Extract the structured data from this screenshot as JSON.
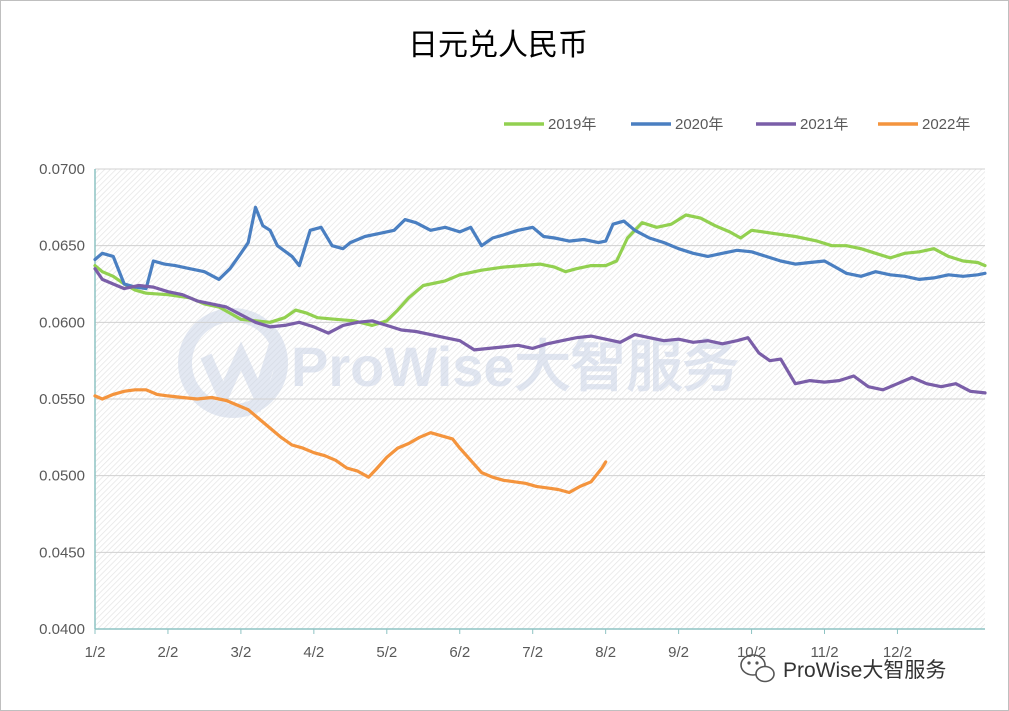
{
  "chart_data": {
    "type": "line",
    "title": "日元兑人民币",
    "xlabel": "",
    "ylabel": "",
    "ylim": [
      0.04,
      0.07
    ],
    "yticks": [
      "0.0700",
      "0.0650",
      "0.0600",
      "0.0550",
      "0.0500",
      "0.0450",
      "0.0400"
    ],
    "ytick_values": [
      0.07,
      0.065,
      0.06,
      0.055,
      0.05,
      0.045,
      0.04
    ],
    "xlim": [
      1,
      13.2
    ],
    "xticks": [
      "1/2",
      "2/2",
      "3/2",
      "4/2",
      "5/2",
      "6/2",
      "7/2",
      "8/2",
      "9/2",
      "10/2",
      "11/2",
      "12/2"
    ],
    "xtick_values": [
      1,
      2,
      3,
      4,
      5,
      6,
      7,
      8,
      9,
      10,
      11,
      12
    ],
    "x_unit": "month (1 = 1/2)",
    "legend_position": "top-right",
    "grid": true,
    "series": [
      {
        "name": "2019年",
        "color": "#92d050",
        "x": [
          1.0,
          1.1,
          1.25,
          1.4,
          1.55,
          1.7,
          2.0,
          2.3,
          2.5,
          2.7,
          2.85,
          3.0,
          3.2,
          3.4,
          3.6,
          3.75,
          3.9,
          4.05,
          4.3,
          4.55,
          4.8,
          5.0,
          5.15,
          5.3,
          5.5,
          5.8,
          6.0,
          6.3,
          6.6,
          6.85,
          7.1,
          7.3,
          7.45,
          7.6,
          7.8,
          8.0,
          8.15,
          8.3,
          8.5,
          8.7,
          8.9,
          9.1,
          9.3,
          9.5,
          9.7,
          9.85,
          10.0,
          10.3,
          10.6,
          10.9,
          11.1,
          11.3,
          11.5,
          11.7,
          11.9,
          12.1,
          12.3,
          12.5,
          12.7,
          12.9,
          13.1,
          13.2
        ],
        "values": [
          0.0637,
          0.0633,
          0.063,
          0.0625,
          0.0621,
          0.0619,
          0.0618,
          0.0616,
          0.0612,
          0.061,
          0.0606,
          0.0602,
          0.0601,
          0.06,
          0.0603,
          0.0608,
          0.0606,
          0.0603,
          0.0602,
          0.0601,
          0.0598,
          0.0601,
          0.0608,
          0.0616,
          0.0624,
          0.0627,
          0.0631,
          0.0634,
          0.0636,
          0.0637,
          0.0638,
          0.0636,
          0.0633,
          0.0635,
          0.0637,
          0.0637,
          0.064,
          0.0655,
          0.0665,
          0.0662,
          0.0664,
          0.067,
          0.0668,
          0.0663,
          0.0659,
          0.0655,
          0.066,
          0.0658,
          0.0656,
          0.0653,
          0.065,
          0.065,
          0.0648,
          0.0645,
          0.0642,
          0.0645,
          0.0646,
          0.0648,
          0.0643,
          0.064,
          0.0639,
          0.0637
        ]
      },
      {
        "name": "2020年",
        "color": "#4a7fc1",
        "x": [
          1.0,
          1.1,
          1.25,
          1.4,
          1.55,
          1.7,
          1.8,
          1.95,
          2.1,
          2.3,
          2.5,
          2.7,
          2.85,
          3.0,
          3.1,
          3.2,
          3.3,
          3.4,
          3.5,
          3.7,
          3.8,
          3.95,
          4.1,
          4.25,
          4.4,
          4.5,
          4.7,
          4.9,
          5.1,
          5.25,
          5.4,
          5.6,
          5.8,
          6.0,
          6.15,
          6.3,
          6.45,
          6.6,
          6.8,
          7.0,
          7.15,
          7.3,
          7.5,
          7.7,
          7.9,
          8.0,
          8.1,
          8.25,
          8.4,
          8.6,
          8.8,
          9.0,
          9.2,
          9.4,
          9.6,
          9.8,
          10.0,
          10.2,
          10.4,
          10.6,
          10.8,
          11.0,
          11.15,
          11.3,
          11.5,
          11.7,
          11.9,
          12.1,
          12.3,
          12.5,
          12.7,
          12.9,
          13.1,
          13.2
        ],
        "values": [
          0.0641,
          0.0645,
          0.0643,
          0.0625,
          0.0623,
          0.0622,
          0.064,
          0.0638,
          0.0637,
          0.0635,
          0.0633,
          0.0628,
          0.0635,
          0.0645,
          0.0652,
          0.0675,
          0.0663,
          0.066,
          0.065,
          0.0643,
          0.0637,
          0.066,
          0.0662,
          0.065,
          0.0648,
          0.0652,
          0.0656,
          0.0658,
          0.066,
          0.0667,
          0.0665,
          0.066,
          0.0662,
          0.0659,
          0.0662,
          0.065,
          0.0655,
          0.0657,
          0.066,
          0.0662,
          0.0656,
          0.0655,
          0.0653,
          0.0654,
          0.0652,
          0.0653,
          0.0664,
          0.0666,
          0.066,
          0.0655,
          0.0652,
          0.0648,
          0.0645,
          0.0643,
          0.0645,
          0.0647,
          0.0646,
          0.0643,
          0.064,
          0.0638,
          0.0639,
          0.064,
          0.0636,
          0.0632,
          0.063,
          0.0633,
          0.0631,
          0.063,
          0.0628,
          0.0629,
          0.0631,
          0.063,
          0.0631,
          0.0632
        ]
      },
      {
        "name": "2021年",
        "color": "#7a5ea8",
        "x": [
          1.0,
          1.1,
          1.25,
          1.4,
          1.6,
          1.8,
          2.0,
          2.2,
          2.4,
          2.6,
          2.8,
          3.0,
          3.2,
          3.4,
          3.6,
          3.8,
          4.0,
          4.2,
          4.4,
          4.6,
          4.8,
          5.0,
          5.2,
          5.4,
          5.6,
          5.8,
          6.0,
          6.2,
          6.4,
          6.6,
          6.8,
          7.0,
          7.2,
          7.4,
          7.6,
          7.8,
          8.0,
          8.2,
          8.4,
          8.6,
          8.8,
          9.0,
          9.2,
          9.4,
          9.6,
          9.8,
          9.95,
          10.1,
          10.25,
          10.4,
          10.6,
          10.8,
          11.0,
          11.2,
          11.4,
          11.6,
          11.8,
          12.0,
          12.2,
          12.4,
          12.6,
          12.8,
          13.0,
          13.2
        ],
        "values": [
          0.0635,
          0.0628,
          0.0625,
          0.0622,
          0.0624,
          0.0623,
          0.062,
          0.0618,
          0.0614,
          0.0612,
          0.061,
          0.0605,
          0.06,
          0.0597,
          0.0598,
          0.06,
          0.0597,
          0.0593,
          0.0598,
          0.06,
          0.0601,
          0.0598,
          0.0595,
          0.0594,
          0.0592,
          0.059,
          0.0588,
          0.0582,
          0.0583,
          0.0584,
          0.0585,
          0.0583,
          0.0586,
          0.0588,
          0.059,
          0.0591,
          0.0589,
          0.0587,
          0.0592,
          0.059,
          0.0588,
          0.0589,
          0.0587,
          0.0588,
          0.0586,
          0.0588,
          0.059,
          0.058,
          0.0575,
          0.0576,
          0.056,
          0.0562,
          0.0561,
          0.0562,
          0.0565,
          0.0558,
          0.0556,
          0.056,
          0.0564,
          0.056,
          0.0558,
          0.056,
          0.0555,
          0.0554
        ]
      },
      {
        "name": "2022年",
        "color": "#f4943d",
        "x": [
          1.0,
          1.1,
          1.25,
          1.4,
          1.55,
          1.7,
          1.85,
          2.0,
          2.2,
          2.4,
          2.6,
          2.8,
          2.95,
          3.1,
          3.25,
          3.4,
          3.55,
          3.7,
          3.85,
          4.0,
          4.15,
          4.3,
          4.45,
          4.6,
          4.75,
          4.85,
          5.0,
          5.15,
          5.3,
          5.45,
          5.6,
          5.75,
          5.9,
          6.0,
          6.15,
          6.3,
          6.45,
          6.6,
          6.75,
          6.9,
          7.05,
          7.2,
          7.35,
          7.5,
          7.65,
          7.8,
          7.95,
          8.0
        ],
        "values": [
          0.0552,
          0.055,
          0.0553,
          0.0555,
          0.0556,
          0.0556,
          0.0553,
          0.0552,
          0.0551,
          0.055,
          0.0551,
          0.0549,
          0.0546,
          0.0543,
          0.0537,
          0.0531,
          0.0525,
          0.052,
          0.0518,
          0.0515,
          0.0513,
          0.051,
          0.0505,
          0.0503,
          0.0499,
          0.0504,
          0.0512,
          0.0518,
          0.0521,
          0.0525,
          0.0528,
          0.0526,
          0.0524,
          0.0518,
          0.051,
          0.0502,
          0.0499,
          0.0497,
          0.0496,
          0.0495,
          0.0493,
          0.0492,
          0.0491,
          0.0489,
          0.0493,
          0.0496,
          0.0505,
          0.0509
        ]
      }
    ]
  },
  "watermark": "ProWise大智服务",
  "brand": "ProWise大智服务",
  "icons": [
    "watermark-logo-icon",
    "wechat-icon"
  ]
}
